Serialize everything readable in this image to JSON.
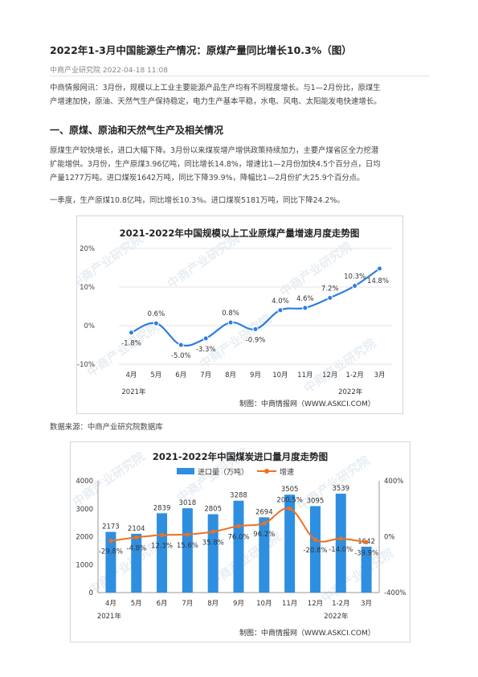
{
  "article": {
    "title": "2022年1-3月中国能源生产情况：原煤产量同比增长10.3%（图）",
    "source": "中商产业研究院",
    "date": "2022-04-18 11:08",
    "intro": [
      "中商情报网讯：3月份，规模以上工业主要能源产品生产均有不同程度增长。与1—2月份比，原煤生",
      "产增速加快，原油、天然气生产保持稳定，电力生产基本平稳，水电、风电、太阳能发电快速增长。"
    ],
    "section_heading": "一、原煤、原油和天然气生产及相关情况",
    "body1": [
      "原煤生产较快增长，进口大幅下降。3月份以来煤炭增产增供政策持续加力，主要产煤省区全力挖潜",
      "扩能增供。3月份，生产原煤3.96亿吨，同比增长14.8%，增速比1—2月份加快4.5个百分点，日均",
      "产量1277万吨。进口煤炭1642万吨，同比下降39.9%，降幅比1—2月份扩大25.9个百分点。"
    ],
    "body2": "一季度，生产原煤10.8亿吨，同比增长10.3%。进口煤炭5181万吨，同比下降24.2%。",
    "data_source": "数据来源：中商产业研究院数据库"
  },
  "chart_data": [
    {
      "type": "line",
      "title": "2021-2022年中国规模以上工业原煤产量增速月度走势图",
      "categories": [
        "4月",
        "5月",
        "6月",
        "7月",
        "8月",
        "9月",
        "10月",
        "11月",
        "12月",
        "1-2月",
        "3月"
      ],
      "values": [
        -1.8,
        0.6,
        -5.0,
        -3.3,
        0.8,
        -0.9,
        4.0,
        4.6,
        7.2,
        10.3,
        14.8
      ],
      "value_labels": [
        "-1.8%",
        "0.6%",
        "-5.0%",
        "-3.3%",
        "0.8%",
        "-0.9%",
        "4.0%",
        "4.6%",
        "7.2%",
        "10.3%",
        "14.8%"
      ],
      "yticks": [
        "20%",
        "10%",
        "0%",
        "-10%"
      ],
      "ylim": [
        -10,
        20
      ],
      "year_labels": [
        "2021年",
        "2022年"
      ],
      "credit": "制图：中商情报网（WWW.ASKCI.COM）",
      "watermark": "中商产业研究院",
      "line_color": "#2e7de0",
      "marker_color": "#ffffff"
    },
    {
      "type": "bar",
      "title": "2021-2022年中国煤炭进口量月度走势图",
      "categories": [
        "4月",
        "5月",
        "6月",
        "7月",
        "8月",
        "9月",
        "10月",
        "11月",
        "12月",
        "1-2月",
        "3月"
      ],
      "series": [
        {
          "name": "进口量（万吨）",
          "values": [
            2173,
            2104,
            2839,
            3018,
            2805,
            3288,
            2694,
            3505,
            3095,
            3539,
            1642
          ],
          "labels": [
            "2173",
            "2104",
            "2839",
            "3018",
            "2805",
            "3288",
            "2694",
            "3505",
            "3095",
            "3539",
            "1642"
          ],
          "color": "#2e8fe0"
        },
        {
          "name": "增速",
          "values": [
            -29.8,
            -4.8,
            12.3,
            15.6,
            35.8,
            76.0,
            96.2,
            200.5,
            -20.8,
            -14.0,
            -39.9
          ],
          "labels": [
            "-29.8%",
            "-4.8%",
            "12.3%",
            "15.6%",
            "35.8%",
            "76.0%",
            "96.2%",
            "200.5%",
            "-20.8%",
            "-14.0%",
            "-39.9%"
          ],
          "color": "#f07020"
        }
      ],
      "yticks_left": [
        "4000",
        "3000",
        "2000",
        "1000",
        "0"
      ],
      "ylim_left": [
        0,
        4000
      ],
      "yticks_right": [
        "400%",
        "0%",
        "-400%"
      ],
      "ylim_right": [
        -400,
        400
      ],
      "year_labels": [
        "2021年",
        "2022年"
      ],
      "credit": "制图：中商情报网（WWW.ASKCI.COM）",
      "watermark": "中商产业研究院"
    }
  ]
}
